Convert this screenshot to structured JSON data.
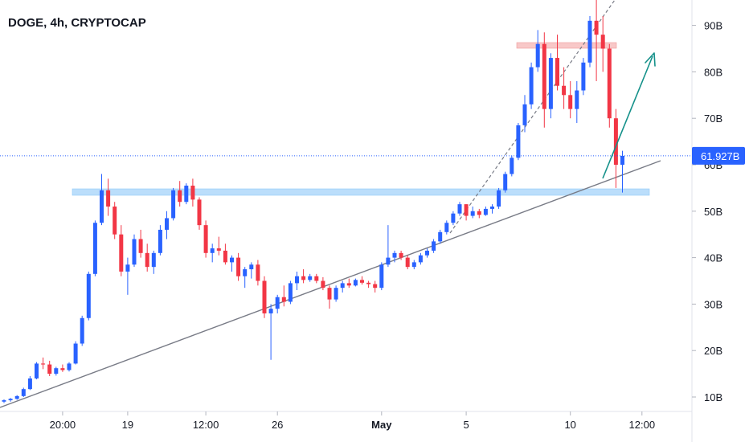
{
  "chart_data": {
    "type": "candlestick",
    "title": "DOGE, 4h, CRYPTOCAP",
    "y_unit": "B",
    "ylim": [
      7,
      95
    ],
    "y_ticks": [
      {
        "value": 10,
        "label": "10B"
      },
      {
        "value": 20,
        "label": "20B"
      },
      {
        "value": 30,
        "label": "30B"
      },
      {
        "value": 40,
        "label": "40B"
      },
      {
        "value": 50,
        "label": "50B"
      },
      {
        "value": 60,
        "label": "60B"
      },
      {
        "value": 70,
        "label": "70B"
      },
      {
        "value": 80,
        "label": "80B"
      },
      {
        "value": 90,
        "label": "90B"
      }
    ],
    "x_ticks": [
      {
        "index": 9,
        "label": "20:00"
      },
      {
        "index": 19,
        "label": "19"
      },
      {
        "index": 31,
        "label": "12:00"
      },
      {
        "index": 42,
        "label": "26"
      },
      {
        "index": 58,
        "label": "May"
      },
      {
        "index": 71,
        "label": "5"
      },
      {
        "index": 87,
        "label": "10"
      },
      {
        "index": 98,
        "label": "12:00"
      }
    ],
    "last_price": {
      "value": 61.927,
      "label": "61.927B"
    },
    "colors": {
      "up": "#2962ff",
      "down": "#f23645",
      "trendline": "#787b86",
      "support_zone": "#bbdefb",
      "resistance_zone": "#f8c8c8",
      "arrow": "#15918a",
      "price_line": "#2962ff"
    },
    "candles": [
      [
        9.0,
        9.5,
        8.7,
        9.3
      ],
      [
        9.3,
        9.8,
        9.0,
        9.6
      ],
      [
        9.6,
        10.4,
        9.4,
        10.2
      ],
      [
        10.2,
        12.0,
        10.0,
        11.7
      ],
      [
        11.7,
        14.5,
        11.5,
        14.0
      ],
      [
        14.0,
        17.5,
        13.8,
        17.2
      ],
      [
        17.2,
        18.5,
        16.0,
        17.0
      ],
      [
        17.0,
        17.8,
        14.5,
        15.0
      ],
      [
        15.0,
        16.5,
        14.6,
        16.2
      ],
      [
        16.2,
        17.0,
        15.4,
        15.8
      ],
      [
        15.8,
        17.5,
        15.5,
        17.2
      ],
      [
        17.2,
        22.0,
        17.0,
        21.5
      ],
      [
        21.5,
        27.5,
        21.0,
        27.0
      ],
      [
        27.0,
        37.0,
        26.5,
        36.5
      ],
      [
        36.5,
        48.0,
        36.0,
        47.5
      ],
      [
        47.5,
        58.0,
        47.0,
        54.5
      ],
      [
        54.5,
        57.0,
        49.0,
        51.0
      ],
      [
        51.0,
        52.0,
        44.0,
        45.0
      ],
      [
        45.0,
        47.0,
        36.0,
        37.0
      ],
      [
        37.0,
        40.0,
        32.0,
        38.5
      ],
      [
        38.5,
        45.0,
        38.0,
        44.0
      ],
      [
        44.0,
        46.0,
        40.0,
        41.0
      ],
      [
        41.0,
        43.0,
        37.0,
        38.0
      ],
      [
        38.0,
        41.5,
        36.5,
        41.0
      ],
      [
        41.0,
        47.0,
        40.5,
        46.0
      ],
      [
        46.0,
        50.0,
        44.0,
        48.5
      ],
      [
        48.5,
        55.0,
        48.0,
        54.5
      ],
      [
        54.5,
        56.5,
        51.0,
        52.0
      ],
      [
        52.0,
        56.0,
        51.5,
        55.5
      ],
      [
        55.5,
        57.0,
        51.0,
        52.5
      ],
      [
        52.5,
        53.0,
        46.0,
        47.0
      ],
      [
        47.0,
        48.0,
        40.0,
        41.0
      ],
      [
        41.0,
        43.0,
        39.0,
        42.0
      ],
      [
        42.0,
        44.5,
        40.5,
        41.5
      ],
      [
        41.5,
        43.0,
        38.5,
        39.0
      ],
      [
        39.0,
        40.5,
        37.0,
        40.0
      ],
      [
        40.0,
        41.0,
        35.0,
        36.0
      ],
      [
        36.0,
        38.0,
        33.5,
        37.5
      ],
      [
        37.5,
        39.0,
        35.5,
        38.5
      ],
      [
        38.5,
        39.5,
        34.0,
        35.0
      ],
      [
        35.0,
        36.0,
        27.0,
        28.0
      ],
      [
        28.0,
        30.0,
        18.0,
        29.0
      ],
      [
        29.0,
        32.0,
        28.0,
        31.5
      ],
      [
        31.5,
        34.0,
        29.5,
        30.5
      ],
      [
        30.5,
        35.0,
        30.0,
        34.5
      ],
      [
        34.5,
        37.0,
        33.0,
        36.0
      ],
      [
        36.0,
        37.5,
        34.5,
        35.2
      ],
      [
        35.2,
        36.5,
        34.8,
        36.0
      ],
      [
        36.0,
        36.5,
        34.5,
        35.0
      ],
      [
        35.0,
        35.8,
        33.0,
        33.5
      ],
      [
        33.5,
        34.0,
        29.0,
        31.0
      ],
      [
        31.0,
        34.0,
        30.5,
        33.5
      ],
      [
        33.5,
        35.0,
        32.5,
        34.5
      ],
      [
        34.5,
        35.5,
        33.5,
        34.0
      ],
      [
        34.0,
        35.5,
        33.8,
        35.2
      ],
      [
        35.2,
        36.0,
        34.2,
        34.6
      ],
      [
        34.6,
        35.0,
        33.5,
        34.3
      ],
      [
        34.3,
        35.0,
        32.5,
        33.5
      ],
      [
        33.5,
        39.0,
        33.0,
        38.5
      ],
      [
        38.5,
        47.0,
        38.0,
        40.0
      ],
      [
        40.0,
        41.5,
        39.0,
        41.0
      ],
      [
        41.0,
        41.5,
        39.5,
        40.0
      ],
      [
        40.0,
        40.5,
        37.5,
        38.0
      ],
      [
        38.0,
        39.5,
        37.5,
        39.0
      ],
      [
        39.0,
        41.0,
        38.5,
        40.5
      ],
      [
        40.5,
        42.0,
        40.0,
        41.5
      ],
      [
        41.5,
        44.0,
        41.0,
        43.5
      ],
      [
        43.5,
        46.0,
        43.0,
        45.5
      ],
      [
        45.5,
        48.0,
        45.0,
        47.5
      ],
      [
        47.5,
        50.0,
        47.0,
        49.5
      ],
      [
        49.5,
        52.0,
        49.0,
        51.5
      ],
      [
        51.5,
        51.5,
        48.0,
        49.0
      ],
      [
        49.0,
        51.0,
        48.5,
        50.0
      ],
      [
        50.0,
        50.5,
        48.5,
        49.2
      ],
      [
        49.2,
        51.0,
        49.0,
        50.5
      ],
      [
        50.5,
        51.5,
        49.5,
        51.0
      ],
      [
        51.0,
        55.0,
        50.5,
        54.5
      ],
      [
        54.5,
        58.5,
        54.0,
        58.0
      ],
      [
        58.0,
        62.0,
        57.5,
        61.5
      ],
      [
        61.5,
        69.0,
        61.0,
        68.5
      ],
      [
        68.5,
        75.0,
        67.0,
        73.0
      ],
      [
        73.0,
        82.0,
        72.0,
        81.0
      ],
      [
        81.0,
        89.0,
        80.0,
        86.0
      ],
      [
        86.0,
        88.5,
        68.0,
        72.0
      ],
      [
        72.0,
        84.0,
        70.0,
        83.0
      ],
      [
        83.0,
        88.0,
        76.0,
        77.0
      ],
      [
        77.0,
        81.0,
        72.0,
        75.0
      ],
      [
        75.0,
        78.0,
        70.0,
        72.0
      ],
      [
        72.0,
        78.0,
        69.0,
        76.0
      ],
      [
        76.0,
        83.0,
        75.0,
        82.0
      ],
      [
        82.0,
        92.0,
        81.0,
        91.0
      ],
      [
        91.0,
        96.0,
        78.0,
        88.0
      ],
      [
        88.0,
        92.0,
        80.0,
        85.0
      ],
      [
        85.0,
        86.0,
        68.0,
        70.0
      ],
      [
        70.0,
        72.0,
        55.0,
        60.0
      ],
      [
        60.0,
        63.0,
        54.0,
        61.927
      ]
    ]
  }
}
